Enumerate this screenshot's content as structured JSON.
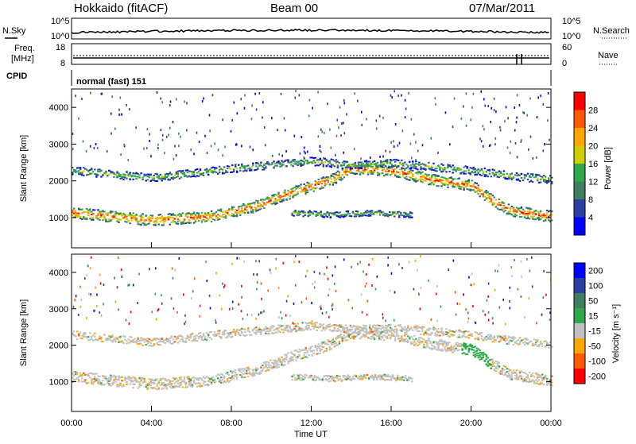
{
  "header": {
    "title": "Hokkaido (fitACF)",
    "beam": "Beam 00",
    "date": "07/Mar/2011"
  },
  "noise_panel": {
    "left_label": "N.Sky",
    "left_ticks": [
      "10^5",
      "10^0"
    ],
    "right_label": "N.Search",
    "right_ticks": [
      "10^5",
      "10^0"
    ]
  },
  "freq_panel": {
    "left_label_1": "Freq.",
    "left_label_2": "[MHz]",
    "left_ticks": [
      "18",
      "8"
    ],
    "right_label": "Nave",
    "right_ticks": [
      "60",
      "0"
    ]
  },
  "cpid_panel": {
    "label": "CPID",
    "value": "normal (fast) 151"
  },
  "colors": {
    "power_scale": [
      "#0000ff",
      "#2a3fa0",
      "#3f7f5f",
      "#2ea84a",
      "#cfcf00",
      "#ffa500",
      "#ff5a00",
      "#ff0000"
    ],
    "velocity_scale": [
      "#0000ff",
      "#2a3fa0",
      "#3f7f5f",
      "#2ea84a",
      "#c0c0c0",
      "#ffa500",
      "#ff5a00",
      "#ff0000"
    ],
    "ground_scatter": "#c0c0c0"
  },
  "chart_data": [
    {
      "type": "heatmap",
      "title": "",
      "ylabel": "Slant Range [km]",
      "xlabel": "",
      "colorbar_label": "Power [dB]",
      "colorbar_ticks": [
        "28",
        "24",
        "20",
        "16",
        "12",
        "8",
        "4"
      ],
      "ylim": [
        180,
        4500
      ],
      "y_ticks": [
        "4000",
        "3000",
        "2000",
        "1000"
      ],
      "x_hours": [
        0,
        24
      ],
      "bands": [
        {
          "name": "e-region-echo",
          "points": [
            [
              0,
              1150
            ],
            [
              4,
              950
            ],
            [
              7,
              1050
            ],
            [
              9,
              1300
            ],
            [
              11,
              1700
            ],
            [
              13,
              2050
            ],
            [
              14,
              2350
            ],
            [
              16,
              2300
            ],
            [
              18,
              2050
            ],
            [
              20,
              1900
            ],
            [
              21,
              1500
            ],
            [
              22,
              1200
            ],
            [
              24,
              1050
            ]
          ],
          "width": 300
        },
        {
          "name": "f-region-echo",
          "points": [
            [
              0,
              2300
            ],
            [
              4,
              2100
            ],
            [
              8,
              2350
            ],
            [
              10,
              2450
            ],
            [
              12,
              2550
            ],
            [
              14,
              2450
            ],
            [
              16,
              2500
            ],
            [
              18,
              2400
            ],
            [
              20,
              2300
            ],
            [
              22,
              2150
            ],
            [
              24,
              2050
            ]
          ],
          "width": 220
        },
        {
          "name": "mid-echo",
          "points": [
            [
              11,
              1150
            ],
            [
              13,
              1100
            ],
            [
              15,
              1150
            ],
            [
              17,
              1100
            ]
          ],
          "width": 160
        }
      ]
    },
    {
      "type": "heatmap",
      "title": "",
      "ylabel": "Slant Range [km]",
      "xlabel": "Time UT",
      "colorbar_label": "Velocity [m s⁻¹]",
      "colorbar_ticks": [
        "200",
        "100",
        "50",
        "15",
        "-15",
        "-50",
        "-100",
        "-200"
      ],
      "ylim": [
        180,
        4500
      ],
      "y_ticks": [
        "4000",
        "3000",
        "2000",
        "1000"
      ],
      "x_ticks": [
        "00:00",
        "04:00",
        "08:00",
        "12:00",
        "16:00",
        "20:00",
        "00:00"
      ],
      "x_hours": [
        0,
        24
      ]
    }
  ]
}
